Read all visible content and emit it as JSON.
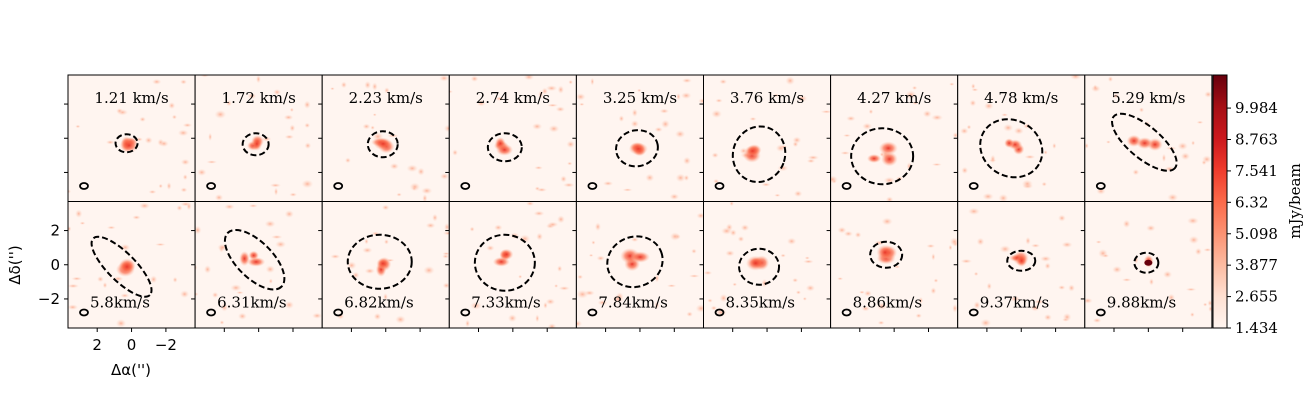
{
  "panels": [
    {
      "label": "1.21 km/s"
    },
    {
      "label": "1.72 km/s"
    },
    {
      "label": "2.23 km/s"
    },
    {
      "label": "2.74 km/s"
    },
    {
      "label": "3.25 km/s"
    },
    {
      "label": "3.76 km/s"
    },
    {
      "label": "4.27 km/s"
    },
    {
      "label": "4.78 km/s"
    },
    {
      "label": "5.29 km/s"
    },
    {
      "label": "5.8km/s"
    },
    {
      "label": "6.31km/s"
    },
    {
      "label": "6.82km/s"
    },
    {
      "label": "7.33km/s"
    },
    {
      "label": "7.84km/s"
    },
    {
      "label": "8.35km/s"
    },
    {
      "label": "8.86km/s"
    },
    {
      "label": "9.37km/s"
    },
    {
      "label": "9.88km/s"
    }
  ],
  "x_axis": {
    "label": "Δα('')",
    "lim": [
      3.7,
      -3.7
    ],
    "ticks": [
      2,
      0,
      {
        "value": -2,
        "label": "−2"
      }
    ]
  },
  "y_axis": {
    "label": "Δδ('')",
    "lim": [
      -3.7,
      3.7
    ],
    "ticks": [
      {
        "value": -2,
        "label": "−2"
      },
      0,
      2
    ]
  },
  "colorbar": {
    "label": "mJy/beam",
    "lim": [
      1.434,
      11.27
    ],
    "ticks": [
      1.434,
      2.655,
      3.877,
      5.098,
      6.32,
      {
        "value": 7.541,
        "label": "7.541"
      },
      8.763,
      9.984
    ]
  }
}
